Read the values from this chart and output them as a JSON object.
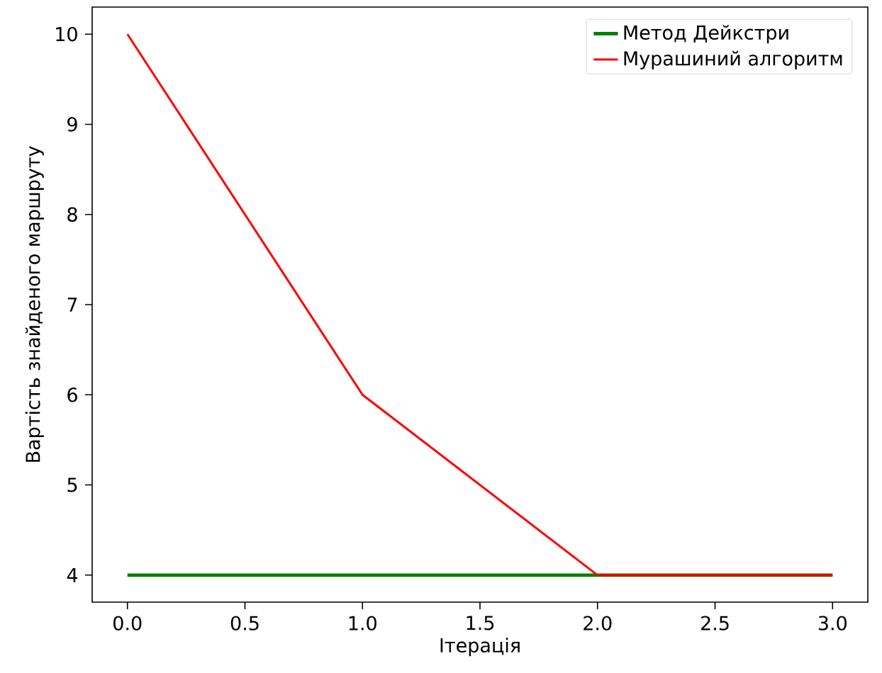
{
  "chart_data": {
    "type": "line",
    "xlabel": "Ітерація",
    "ylabel": "Вартість знайденого маршруту",
    "x": [
      0,
      1,
      2,
      3
    ],
    "series": [
      {
        "name": "Метод Дейкстри",
        "color": "#008000",
        "values": [
          4,
          4,
          4,
          4
        ]
      },
      {
        "name": "Мурашиний алгоритм",
        "color": "#ff0000",
        "values": [
          10,
          6,
          4,
          4
        ]
      }
    ],
    "xlim": [
      -0.15,
      3.15
    ],
    "ylim": [
      3.7,
      10.3
    ],
    "xticks": [
      {
        "value": 0,
        "label": "0.0"
      },
      {
        "value": 0.5,
        "label": "0.5"
      },
      {
        "value": 1,
        "label": "1.0"
      },
      {
        "value": 1.5,
        "label": "1.5"
      },
      {
        "value": 2,
        "label": "2.0"
      },
      {
        "value": 2.5,
        "label": "2.5"
      },
      {
        "value": 3,
        "label": "3.0"
      }
    ],
    "yticks": [
      4,
      5,
      6,
      7,
      8,
      9,
      10
    ],
    "grid": false,
    "legend": "top right",
    "marker": "none",
    "line_style": "solid"
  }
}
